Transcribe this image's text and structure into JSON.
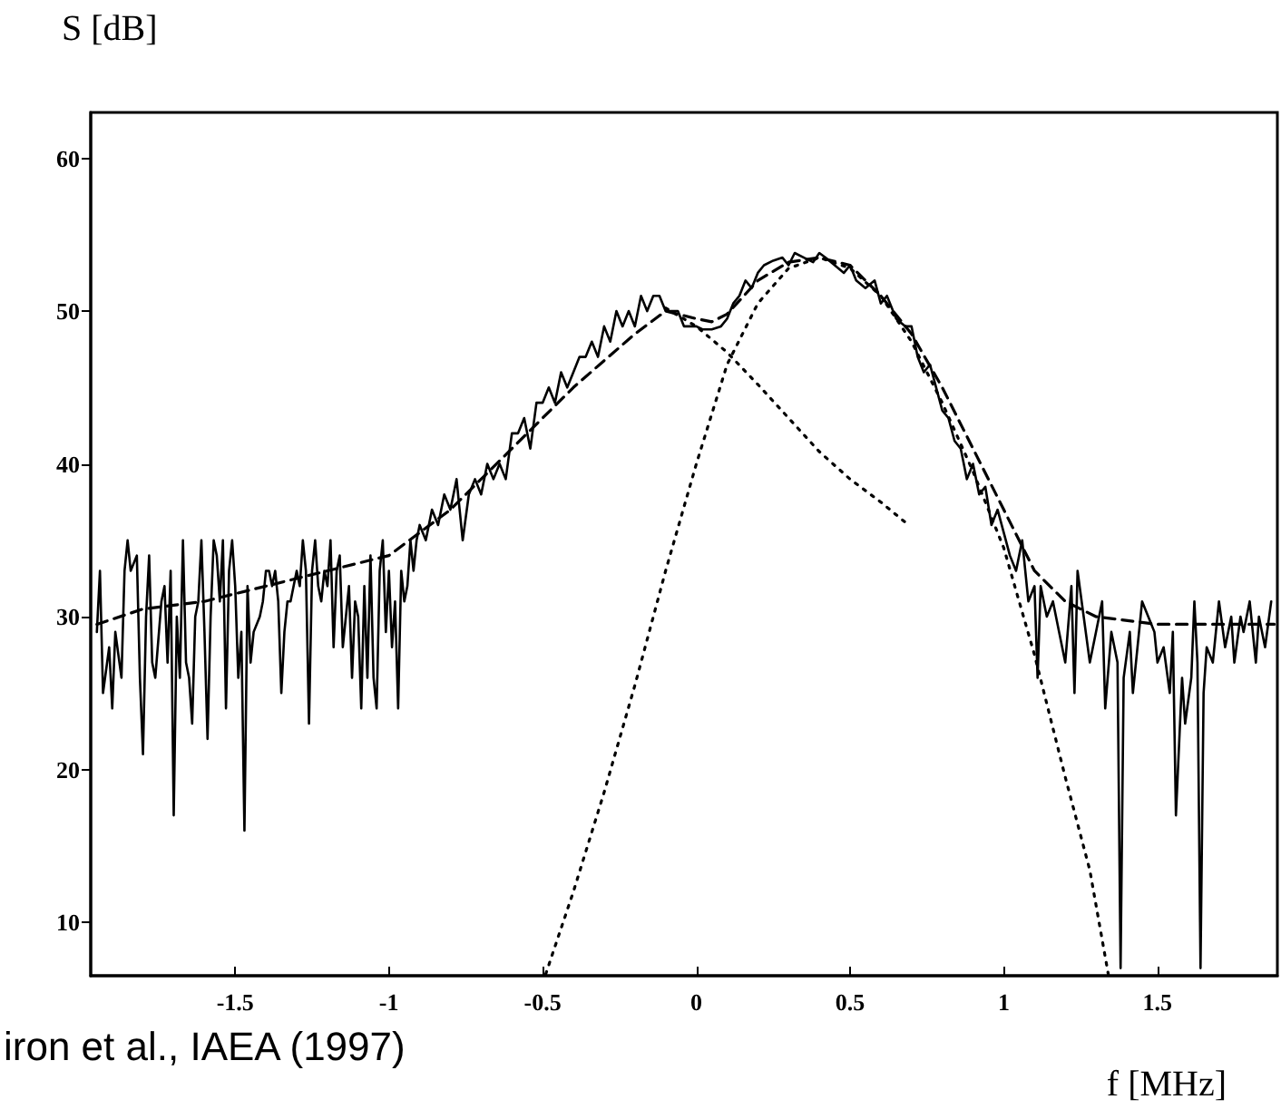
{
  "chart_data": {
    "type": "line",
    "xlabel": "f [MHz]",
    "ylabel": "S [dB]",
    "annotations": [
      "iron et al., IAEA (1997)"
    ],
    "xlim": [
      -1.97,
      1.89
    ],
    "xticks": [
      -1.5,
      -1,
      -0.5,
      0,
      0.5,
      1,
      1.5
    ],
    "ylim": [
      6.5,
      63
    ],
    "yticks": [
      10,
      20,
      30,
      40,
      50,
      60
    ],
    "marker": "none",
    "series": [
      {
        "color": "#000000",
        "line_style": "solid",
        "x": [
          -1.95,
          -1.94,
          -1.93,
          -1.91,
          -1.9,
          -1.89,
          -1.87,
          -1.86,
          -1.85,
          -1.84,
          -1.82,
          -1.81,
          -1.8,
          -1.79,
          -1.78,
          -1.77,
          -1.76,
          -1.74,
          -1.73,
          -1.72,
          -1.71,
          -1.7,
          -1.69,
          -1.68,
          -1.67,
          -1.66,
          -1.65,
          -1.64,
          -1.63,
          -1.62,
          -1.61,
          -1.6,
          -1.59,
          -1.58,
          -1.57,
          -1.56,
          -1.55,
          -1.54,
          -1.53,
          -1.52,
          -1.51,
          -1.5,
          -1.49,
          -1.48,
          -1.47,
          -1.46,
          -1.45,
          -1.44,
          -1.42,
          -1.41,
          -1.4,
          -1.39,
          -1.38,
          -1.37,
          -1.36,
          -1.35,
          -1.34,
          -1.33,
          -1.32,
          -1.31,
          -1.3,
          -1.29,
          -1.28,
          -1.27,
          -1.26,
          -1.25,
          -1.24,
          -1.23,
          -1.22,
          -1.21,
          -1.2,
          -1.19,
          -1.18,
          -1.17,
          -1.16,
          -1.15,
          -1.14,
          -1.13,
          -1.12,
          -1.11,
          -1.1,
          -1.09,
          -1.08,
          -1.07,
          -1.06,
          -1.05,
          -1.04,
          -1.03,
          -1.02,
          -1.01,
          -1,
          -0.99,
          -0.98,
          -0.97,
          -0.96,
          -0.95,
          -0.94,
          -0.93,
          -0.92,
          -0.91,
          -0.9,
          -0.88,
          -0.86,
          -0.84,
          -0.82,
          -0.8,
          -0.78,
          -0.76,
          -0.74,
          -0.72,
          -0.7,
          -0.68,
          -0.66,
          -0.64,
          -0.62,
          -0.6,
          -0.58,
          -0.56,
          -0.54,
          -0.52,
          -0.5,
          -0.48,
          -0.46,
          -0.44,
          -0.42,
          -0.4,
          -0.38,
          -0.36,
          -0.34,
          -0.32,
          -0.3,
          -0.28,
          -0.26,
          -0.24,
          -0.22,
          -0.2,
          -0.18,
          -0.16,
          -0.14,
          -0.12,
          -0.1,
          -0.08,
          -0.06,
          -0.04,
          -0.02,
          0,
          0.02,
          0.05,
          0.08,
          0.1,
          0.12,
          0.14,
          0.16,
          0.18,
          0.2,
          0.22,
          0.25,
          0.28,
          0.3,
          0.32,
          0.35,
          0.38,
          0.4,
          0.42,
          0.45,
          0.48,
          0.5,
          0.52,
          0.55,
          0.58,
          0.6,
          0.62,
          0.65,
          0.68,
          0.7,
          0.72,
          0.74,
          0.76,
          0.78,
          0.8,
          0.82,
          0.84,
          0.86,
          0.88,
          0.9,
          0.92,
          0.94,
          0.96,
          0.98,
          1,
          1.02,
          1.04,
          1.06,
          1.08,
          1.1,
          1.11,
          1.12,
          1.14,
          1.16,
          1.18,
          1.2,
          1.22,
          1.23,
          1.24,
          1.26,
          1.28,
          1.3,
          1.32,
          1.33,
          1.35,
          1.37,
          1.38,
          1.39,
          1.41,
          1.42,
          1.44,
          1.45,
          1.47,
          1.49,
          1.5,
          1.52,
          1.54,
          1.55,
          1.56,
          1.58,
          1.59,
          1.61,
          1.62,
          1.63,
          1.64,
          1.65,
          1.66,
          1.68,
          1.69,
          1.7,
          1.72,
          1.74,
          1.75,
          1.77,
          1.78,
          1.8,
          1.82,
          1.83,
          1.85,
          1.87
        ],
        "values": [
          29,
          33,
          25,
          28,
          24,
          29,
          26,
          33,
          35,
          33,
          34,
          26,
          21,
          30,
          34,
          27,
          26,
          31,
          32,
          27,
          33,
          17,
          30,
          26,
          35,
          27,
          26,
          23,
          30,
          31,
          35,
          29,
          22,
          30,
          35,
          34,
          31,
          35,
          24,
          33,
          35,
          32,
          26,
          29,
          16,
          32,
          27,
          29,
          30,
          31,
          33,
          33,
          32,
          33,
          31,
          25,
          29,
          31,
          31,
          32,
          33,
          32,
          35,
          33,
          23,
          33,
          35,
          32,
          31,
          33,
          32,
          35,
          28,
          33,
          34,
          28,
          30,
          32,
          26,
          31,
          30,
          24,
          32,
          26,
          34,
          26,
          24,
          33,
          35,
          29,
          33,
          28,
          31,
          24,
          33,
          31,
          32,
          35,
          33,
          35,
          36,
          35,
          37,
          36,
          38,
          37,
          39,
          35,
          38,
          39,
          38,
          40,
          39,
          40,
          39,
          42,
          42,
          43,
          41,
          44,
          44,
          45,
          44,
          46,
          45,
          46,
          47,
          47,
          48,
          47,
          49,
          48,
          50,
          49,
          50,
          49,
          51,
          50,
          51,
          51,
          50,
          50,
          50,
          49,
          49,
          49,
          48.8,
          48.8,
          49,
          49.5,
          50.5,
          51,
          52,
          51.5,
          52.5,
          53,
          53.3,
          53.5,
          53,
          53.8,
          53.5,
          53.2,
          53.8,
          53.5,
          53,
          52.5,
          53,
          52,
          51.5,
          52,
          50.5,
          51,
          49.5,
          49,
          49,
          47,
          46,
          46.5,
          45,
          43.5,
          43,
          41.5,
          41,
          39,
          40,
          38,
          38.5,
          36,
          37,
          35.5,
          34,
          33,
          35,
          31,
          32,
          26,
          32,
          30,
          31,
          29,
          27,
          32,
          25,
          33,
          30,
          27,
          29,
          31,
          24,
          29,
          27,
          7,
          26,
          29,
          25,
          29,
          31,
          30,
          29,
          27,
          28,
          25,
          29,
          17,
          26,
          23,
          26,
          31,
          27,
          7,
          25,
          28,
          27,
          29,
          31,
          28,
          30,
          27,
          30,
          29,
          31,
          27,
          30,
          28,
          31
        ]
      },
      {
        "color": "#000000",
        "line_style": "dashed",
        "x": [
          -1.95,
          -1.8,
          -1.6,
          -1.4,
          -1.2,
          -1,
          -0.8,
          -0.6,
          -0.4,
          -0.2,
          -0.1,
          0,
          0.05,
          0.1,
          0.2,
          0.3,
          0.4,
          0.5,
          0.6,
          0.7,
          0.8,
          0.9,
          1,
          1.1,
          1.2,
          1.3,
          1.5,
          1.7,
          1.88
        ],
        "values": [
          29.5,
          30.5,
          31,
          32,
          33,
          34,
          37,
          41,
          45,
          48.5,
          50,
          49.5,
          49.3,
          49.8,
          52,
          53.2,
          53.5,
          53,
          51,
          48.5,
          45,
          41,
          37,
          33,
          31,
          30,
          29.5,
          29.5,
          29.5
        ]
      },
      {
        "color": "#000000",
        "line_style": "dotted",
        "x": [
          -0.1,
          0,
          0.1,
          0.2,
          0.3,
          0.4,
          0.5,
          0.6,
          0.69
        ],
        "values": [
          50.2,
          49,
          47.3,
          45.2,
          43,
          40.8,
          39,
          37.5,
          36
        ]
      },
      {
        "color": "#000000",
        "line_style": "dotted",
        "x": [
          -0.49,
          -0.4,
          -0.3,
          -0.2,
          -0.1,
          0,
          0.1,
          0.2,
          0.3,
          0.4,
          0.5,
          0.6,
          0.7,
          0.8,
          0.9,
          1,
          1.1,
          1.2,
          1.28,
          1.34
        ],
        "values": [
          6.6,
          12,
          18.5,
          25.5,
          33,
          40,
          46.5,
          50.5,
          52.8,
          53.5,
          52.8,
          51,
          48,
          44,
          39.5,
          34.5,
          27.5,
          19.5,
          13.4,
          6.6
        ]
      }
    ]
  }
}
